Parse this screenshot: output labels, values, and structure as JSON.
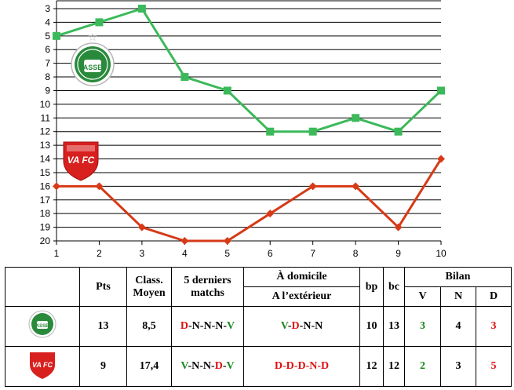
{
  "chart_data": {
    "type": "line",
    "x": [
      1,
      2,
      3,
      4,
      5,
      6,
      7,
      8,
      9,
      10
    ],
    "xlim": [
      1,
      10
    ],
    "ylim": [
      20,
      3
    ],
    "y_inverted": true,
    "xticks": [
      "1",
      "2",
      "3",
      "4",
      "5",
      "6",
      "7",
      "8",
      "9",
      "10"
    ],
    "yticks": [
      "3",
      "4",
      "5",
      "6",
      "7",
      "8",
      "9",
      "10",
      "11",
      "12",
      "13",
      "14",
      "15",
      "16",
      "17",
      "18",
      "19",
      "20"
    ],
    "grid": "horizontal",
    "series": [
      {
        "team": "ASSE",
        "color": "#3cb95a",
        "marker": "square",
        "values": [
          5,
          4,
          3,
          8,
          9,
          12,
          12,
          11,
          12,
          9
        ]
      },
      {
        "team": "VAFC",
        "color": "#d63a17",
        "marker": "diamond",
        "values": [
          16,
          16,
          19,
          20,
          20,
          18,
          16,
          16,
          19,
          14
        ]
      }
    ]
  },
  "logos": {
    "asse": {
      "text": "ASSE"
    },
    "vafc": {
      "text": "VA FC"
    }
  },
  "table": {
    "headers": {
      "pts": "Pts",
      "class_line1": "Class.",
      "class_line2": "Moyen",
      "last5_line1": "5 derniers",
      "last5_line2": "matchs",
      "home": "À domicile",
      "away": "A l’extérieur",
      "bp": "bp",
      "bc": "bc",
      "bilan": "Bilan",
      "v": "V",
      "n": "N",
      "d": "D"
    },
    "rows": [
      {
        "team": "ASSE",
        "pts": "13",
        "class": "8,5",
        "last5": [
          {
            "r": "D",
            "c": "r"
          },
          {
            "r": "-",
            "c": "d"
          },
          {
            "r": "N",
            "c": "d"
          },
          {
            "r": "-",
            "c": "d"
          },
          {
            "r": "N",
            "c": "d"
          },
          {
            "r": "-",
            "c": "d"
          },
          {
            "r": "N",
            "c": "d"
          },
          {
            "r": "-",
            "c": "d"
          },
          {
            "r": "V",
            "c": "g"
          }
        ],
        "venue": [
          {
            "r": "V",
            "c": "g"
          },
          {
            "r": "-",
            "c": "d"
          },
          {
            "r": "D",
            "c": "r"
          },
          {
            "r": "-",
            "c": "d"
          },
          {
            "r": "N",
            "c": "d"
          },
          {
            "r": "-",
            "c": "d"
          },
          {
            "r": "N",
            "c": "d"
          }
        ],
        "bp": "10",
        "bc": "13",
        "v": "3",
        "n": "4",
        "d": "3"
      },
      {
        "team": "VAFC",
        "pts": "9",
        "class": "17,4",
        "last5": [
          {
            "r": "V",
            "c": "g"
          },
          {
            "r": "-",
            "c": "d"
          },
          {
            "r": "N",
            "c": "d"
          },
          {
            "r": "-",
            "c": "d"
          },
          {
            "r": "N",
            "c": "d"
          },
          {
            "r": "-",
            "c": "d"
          },
          {
            "r": "D",
            "c": "r"
          },
          {
            "r": "-",
            "c": "d"
          },
          {
            "r": "V",
            "c": "g"
          }
        ],
        "venue": [
          {
            "r": "D",
            "c": "r"
          },
          {
            "r": "-",
            "c": "r"
          },
          {
            "r": "D",
            "c": "r"
          },
          {
            "r": "-",
            "c": "r"
          },
          {
            "r": "D",
            "c": "r"
          },
          {
            "r": "-",
            "c": "r"
          },
          {
            "r": "N",
            "c": "r"
          },
          {
            "r": "-",
            "c": "r"
          },
          {
            "r": "D",
            "c": "r"
          }
        ],
        "bp": "12",
        "bc": "12",
        "v": "2",
        "n": "3",
        "d": "5"
      }
    ]
  }
}
